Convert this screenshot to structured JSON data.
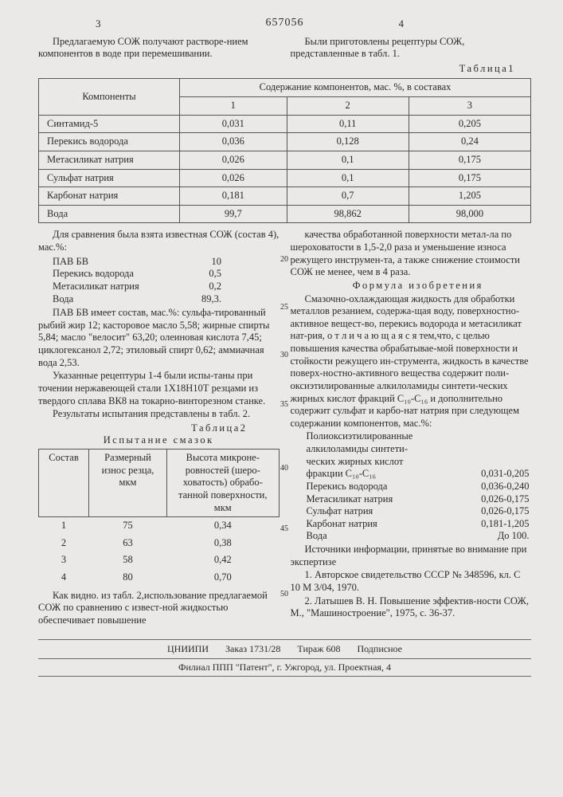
{
  "docnum": "657056",
  "cornerL": "3",
  "cornerR": "4",
  "intro_left": "Предлагаемую СОЖ получают растворе-нием компонентов в воде при перемешивании.",
  "intro_right": "Были приготовлены рецептуры СОЖ, представленные в табл. 1.",
  "table1_caption": "Таблица1",
  "table1": {
    "head_comp": "Компоненты",
    "head_group": "Содержание компонентов, мас. %, в составах",
    "cols": [
      "1",
      "2",
      "3"
    ],
    "rows": [
      {
        "n": "Синтамид-5",
        "v": [
          "0,031",
          "0,11",
          "0,205"
        ]
      },
      {
        "n": "Перекись водорода",
        "v": [
          "0,036",
          "0,128",
          "0,24"
        ]
      },
      {
        "n": "Метасиликат натрия",
        "v": [
          "0,026",
          "0,1",
          "0,175"
        ]
      },
      {
        "n": "Сульфат натрия",
        "v": [
          "0,026",
          "0,1",
          "0,175"
        ]
      },
      {
        "n": "Карбонат натрия",
        "v": [
          "0,181",
          "0,7",
          "1,205"
        ]
      },
      {
        "n": "Вода",
        "v": [
          "99,7",
          "98,862",
          "98,000"
        ]
      }
    ]
  },
  "left_para1": "Для сравнения была взята известная СОЖ (состав  4), мас.%:",
  "known": [
    {
      "n": "ПАВ БВ",
      "v": "10"
    },
    {
      "n": "Перекись водорода",
      "v": "0,5"
    },
    {
      "n": "Метасиликат натрия",
      "v": "0,2"
    },
    {
      "n": "Вода",
      "v": "89,3."
    }
  ],
  "left_para2": "ПАВ БВ имеет состав, мас.%: сульфа-тированный рыбий жир 12; касторовое масло 5,58; жирные спирты 5,84; масло \"велосит\" 63,20; олеиновая кислота 7,45; циклогексанол 2,72; этиловый спирт 0,62; аммиачная вода 2,53.",
  "left_para3": "Указанные рецептуры 1-4 были испы-таны при точении нержавеющей стали 1Х18Н10Т резцами из твердого сплава ВК8 на токарно-винторезном станке.",
  "left_para4": "Результаты испытания представлены в табл. 2.",
  "table2_caption": "Таблица2",
  "table2_title": "Испытание смазок",
  "table2": {
    "cols": [
      "Состав",
      "Размерный износ резца, мкм",
      "Высота микроне-ровностей (шеро-ховатость) обрабо-танной поверхности, мкм"
    ],
    "rows": [
      [
        "1",
        "75",
        "0,34"
      ],
      [
        "2",
        "63",
        "0,38"
      ],
      [
        "3",
        "58",
        "0,42"
      ],
      [
        "4",
        "80",
        "0,70"
      ]
    ]
  },
  "left_para5": "Как видно. из табл. 2,использование предлагаемой СОЖ по сравнению с извест-ной жидкостью обеспечивает повышение",
  "right_para1": "качества обработанной поверхности метал-ла по шероховатости в 1,5-2,0 раза и уменьшение износа режущего инструмен-та,  а также снижение стоимости СОЖ не менее, чем в 4 раза.",
  "formula_head": "Формула  изобретения",
  "right_para2": "Смазочно-охлаждающая жидкость для обработки металлов резанием, содержа-щая воду, поверхностно-активное вещест-во, перекись водорода и метасиликат нат-рия, о т л и ч а ю щ а я с я  тем,что, с целью повышения качества обрабатывае-мой поверхности и стойкости режущего ин-струмента, жидкость в качестве поверх-ностно-активного вещества содержит поли-оксиэтилированные алкилоламиды синтети-ческих жирных кислот фракций C₁₀-C₁₆  и дополнительно содержит сульфат и карбо-нат натрия при следующем содержании компонентов, мас.%:",
  "components": [
    {
      "n": "Полиоксиэтилированные",
      "v": ""
    },
    {
      "n": "алкилоламиды синтети-",
      "v": ""
    },
    {
      "n": "ческих жирных кислот",
      "v": ""
    },
    {
      "n": "фракции C₁₀-C₁₆",
      "v": "0,031-0,205"
    },
    {
      "n": "Перекись водорода",
      "v": "0,036-0,240"
    },
    {
      "n": "Метасиликат натрия",
      "v": "0,026-0,175"
    },
    {
      "n": "Сульфат натрия",
      "v": "0,026-0,175"
    },
    {
      "n": "Карбонат натрия",
      "v": "0,181-1,205"
    },
    {
      "n": "Вода",
      "v": "До 100."
    }
  ],
  "right_para3": "Источники информации, принятые во внимание  при экспертизе",
  "ref1": "1. Авторское свидетельство СССР № 348596, кл. С 10 М 3/04, 1970.",
  "ref2": "2. Латышев В. Н. Повышение эффектив-ности СОЖ, М., \"Машиностроение\", 1975, с. 36-37.",
  "margin_nums": {
    "m20": "20",
    "m25": "25",
    "m30": "30",
    "m35": "35",
    "m40": "40",
    "m45": "45",
    "m50": "50"
  },
  "footer": {
    "org": "ЦНИИПИ",
    "zak": "Заказ 1731/28",
    "tir": "Тираж 608",
    "pod": "Подписное"
  },
  "footer2": "Филиал ППП \"Патент\", г. Ужгород, ул. Проектная, 4"
}
